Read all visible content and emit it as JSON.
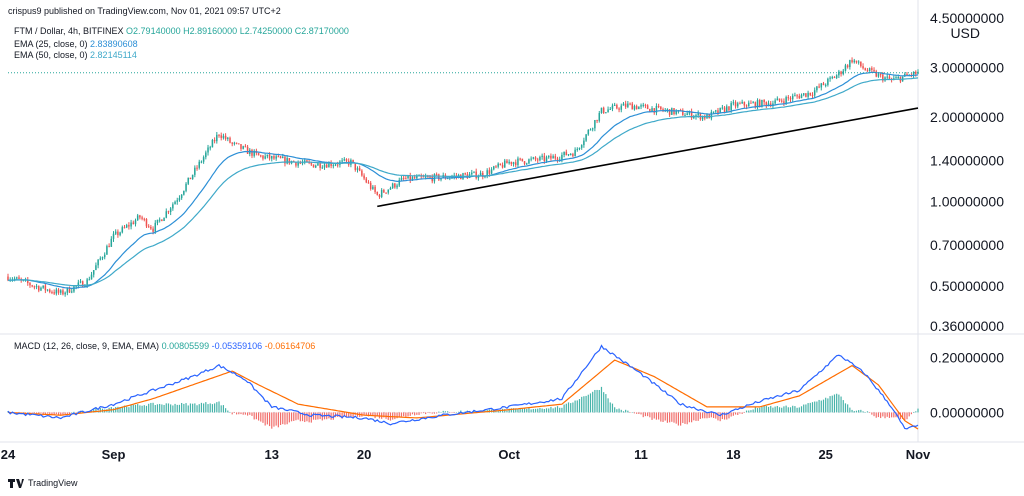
{
  "header": {
    "publisher_line": "crispus9 published on TradingView.com, Nov 01, 2021 09:57 UTC+2",
    "symbol": "FTM / Dollar, 4h, BITFINEX",
    "ohlc": {
      "o": "O2.79140000",
      "h": "H2.89160000",
      "l": "L2.74250000",
      "c": "C2.87170000"
    },
    "ema25_label": "EMA (25, close, 0)",
    "ema25_value": "2.83890608",
    "ema50_label": "EMA (50, close, 0)",
    "ema50_value": "2.82145114",
    "macd_label": "MACD (12, 26, close, 9, EMA, EMA)",
    "macd_values": [
      "0.00805599",
      "-0.05359106",
      "-0.06164706"
    ]
  },
  "footer": {
    "brand": "TradingView",
    "logo_icon": "tradingview-logo-icon"
  },
  "colors": {
    "up": "#26a69a",
    "down": "#ef5350",
    "ema25": "#2c8fd6",
    "ema50": "#3fa9c9",
    "macd": "#2962ff",
    "signal": "#ff6d00",
    "hist_up": "#26a69a",
    "hist_down": "#ef5350",
    "trendline": "#000000",
    "last_price_line": "#26a69a"
  },
  "chart_data": [
    {
      "type": "candlestick",
      "scale": "log",
      "currency": "USD",
      "y_ticks": [
        "4.50000000",
        "3.00000000",
        "2.00000000",
        "1.40000000",
        "1.00000000",
        "0.70000000",
        "0.50000000",
        "0.36000000"
      ],
      "y_tick_values": [
        4.5,
        3.0,
        2.0,
        1.4,
        1.0,
        0.7,
        0.5,
        0.36
      ],
      "x_ticks": [
        "24",
        "Sep",
        "13",
        "20",
        "Oct",
        "11",
        "18",
        "25",
        "Nov"
      ],
      "x_tick_dates": [
        "2021-08-24",
        "2021-09-01",
        "2021-09-13",
        "2021-09-20",
        "2021-10-01",
        "2021-10-11",
        "2021-10-18",
        "2021-10-25",
        "2021-11-01"
      ],
      "x_range": [
        "2021-08-24",
        "2021-11-01"
      ],
      "price_path": [
        [
          "2021-08-24",
          0.54
        ],
        [
          "2021-08-26",
          0.5
        ],
        [
          "2021-08-28",
          0.47
        ],
        [
          "2021-08-30",
          0.52
        ],
        [
          "2021-09-01",
          0.75
        ],
        [
          "2021-09-03",
          0.88
        ],
        [
          "2021-09-04",
          0.8
        ],
        [
          "2021-09-06",
          1.05
        ],
        [
          "2021-09-07",
          1.25
        ],
        [
          "2021-09-09",
          1.75
        ],
        [
          "2021-09-10",
          1.6
        ],
        [
          "2021-09-12",
          1.45
        ],
        [
          "2021-09-14",
          1.4
        ],
        [
          "2021-09-16",
          1.35
        ],
        [
          "2021-09-19",
          1.38
        ],
        [
          "2021-09-21",
          1.05
        ],
        [
          "2021-09-23",
          1.2
        ],
        [
          "2021-09-26",
          1.22
        ],
        [
          "2021-09-29",
          1.25
        ],
        [
          "2021-10-01",
          1.38
        ],
        [
          "2021-10-04",
          1.42
        ],
        [
          "2021-10-06",
          1.5
        ],
        [
          "2021-10-08",
          2.1
        ],
        [
          "2021-10-10",
          2.2
        ],
        [
          "2021-10-13",
          2.1
        ],
        [
          "2021-10-16",
          2.0
        ],
        [
          "2021-10-18",
          2.2
        ],
        [
          "2021-10-21",
          2.25
        ],
        [
          "2021-10-24",
          2.45
        ],
        [
          "2021-10-26",
          2.85
        ],
        [
          "2021-10-27",
          3.2
        ],
        [
          "2021-10-28",
          2.95
        ],
        [
          "2021-10-29",
          2.8
        ],
        [
          "2021-10-30",
          2.7
        ],
        [
          "2021-11-01",
          2.87
        ]
      ],
      "ema25_last": 2.83890608,
      "ema50_last": 2.82145114,
      "last_price": 2.8717,
      "trendline": {
        "from": [
          "2021-09-21",
          0.96
        ],
        "to": [
          "2021-11-01",
          2.15
        ]
      }
    },
    {
      "type": "macd",
      "y_ticks": [
        "0.20000000",
        "0.00000000"
      ],
      "y_tick_values": [
        0.2,
        0.0
      ],
      "macd_path": [
        [
          "2021-08-24",
          0.0
        ],
        [
          "2021-08-28",
          -0.02
        ],
        [
          "2021-09-01",
          0.03
        ],
        [
          "2021-09-04",
          0.08
        ],
        [
          "2021-09-07",
          0.13
        ],
        [
          "2021-09-09",
          0.17
        ],
        [
          "2021-09-11",
          0.12
        ],
        [
          "2021-09-13",
          0.02
        ],
        [
          "2021-09-16",
          -0.01
        ],
        [
          "2021-09-20",
          -0.02
        ],
        [
          "2021-09-22",
          -0.04
        ],
        [
          "2021-09-26",
          -0.01
        ],
        [
          "2021-10-01",
          0.02
        ],
        [
          "2021-10-05",
          0.05
        ],
        [
          "2021-10-08",
          0.24
        ],
        [
          "2021-10-11",
          0.14
        ],
        [
          "2021-10-14",
          0.03
        ],
        [
          "2021-10-17",
          -0.01
        ],
        [
          "2021-10-20",
          0.04
        ],
        [
          "2021-10-23",
          0.08
        ],
        [
          "2021-10-26",
          0.21
        ],
        [
          "2021-10-28",
          0.14
        ],
        [
          "2021-10-30",
          0.02
        ],
        [
          "2021-10-31",
          -0.06
        ],
        [
          "2021-11-01",
          -0.05
        ]
      ],
      "signal_path": [
        [
          "2021-08-24",
          0.0
        ],
        [
          "2021-08-28",
          -0.01
        ],
        [
          "2021-09-01",
          0.01
        ],
        [
          "2021-09-04",
          0.05
        ],
        [
          "2021-09-07",
          0.1
        ],
        [
          "2021-09-10",
          0.15
        ],
        [
          "2021-09-12",
          0.1
        ],
        [
          "2021-09-15",
          0.03
        ],
        [
          "2021-09-20",
          -0.01
        ],
        [
          "2021-09-24",
          -0.02
        ],
        [
          "2021-10-01",
          0.01
        ],
        [
          "2021-10-05",
          0.03
        ],
        [
          "2021-10-09",
          0.19
        ],
        [
          "2021-10-12",
          0.13
        ],
        [
          "2021-10-16",
          0.02
        ],
        [
          "2021-10-20",
          0.02
        ],
        [
          "2021-10-23",
          0.06
        ],
        [
          "2021-10-27",
          0.17
        ],
        [
          "2021-10-29",
          0.1
        ],
        [
          "2021-10-31",
          -0.03
        ],
        [
          "2021-11-01",
          -0.06
        ]
      ],
      "macd_last": -0.05359106,
      "signal_last": -0.06164706,
      "histogram_last": 0.00805599
    }
  ]
}
